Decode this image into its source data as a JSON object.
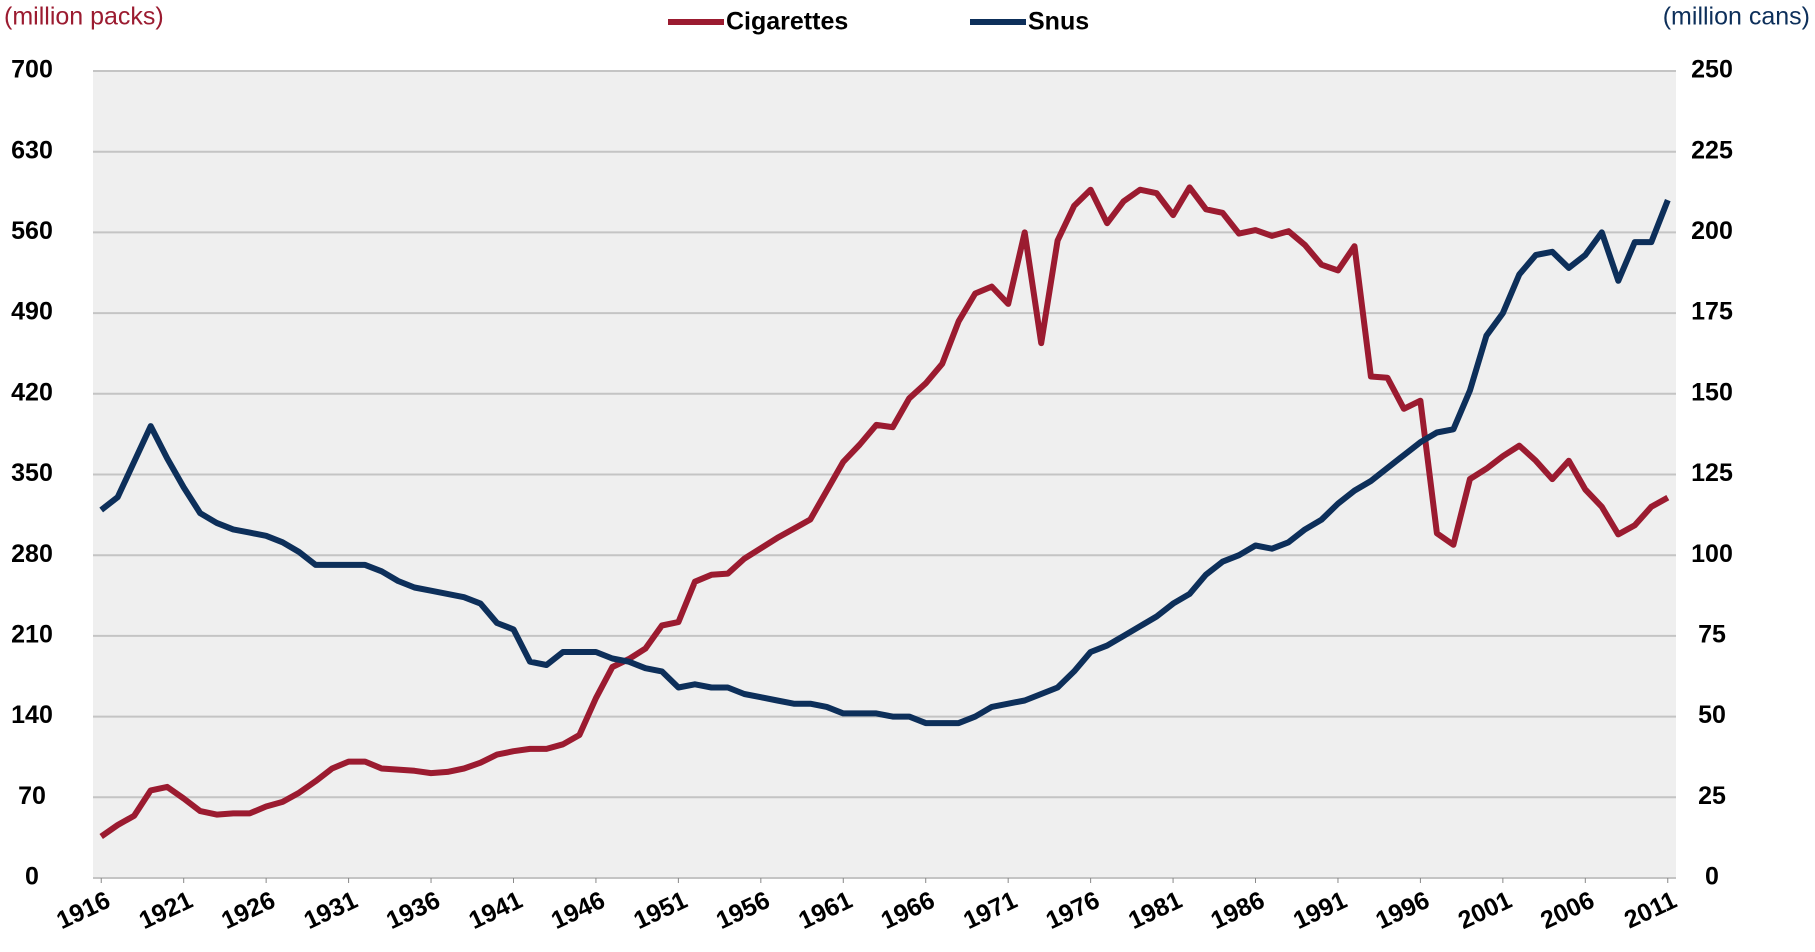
{
  "chart_data": {
    "type": "line",
    "ylabel": "(million packs)",
    "y2label": "(million cans)",
    "x": [
      1916,
      1917,
      1918,
      1919,
      1920,
      1921,
      1922,
      1923,
      1924,
      1925,
      1926,
      1927,
      1928,
      1929,
      1930,
      1931,
      1932,
      1933,
      1934,
      1935,
      1936,
      1937,
      1938,
      1939,
      1940,
      1941,
      1942,
      1943,
      1944,
      1945,
      1946,
      1947,
      1948,
      1949,
      1950,
      1951,
      1952,
      1953,
      1954,
      1955,
      1956,
      1957,
      1958,
      1959,
      1960,
      1961,
      1962,
      1963,
      1964,
      1965,
      1966,
      1967,
      1968,
      1969,
      1970,
      1971,
      1972,
      1973,
      1974,
      1975,
      1976,
      1977,
      1978,
      1979,
      1980,
      1981,
      1982,
      1983,
      1984,
      1985,
      1986,
      1987,
      1988,
      1989,
      1990,
      1991,
      1992,
      1993,
      1994,
      1995,
      1996,
      1997,
      1998,
      1999,
      2000,
      2001,
      2002,
      2003,
      2004,
      2005,
      2006,
      2007,
      2008,
      2009,
      2010,
      2011
    ],
    "xlim": [
      1915.5,
      2011.5
    ],
    "xticks": [
      1916,
      1921,
      1926,
      1931,
      1936,
      1941,
      1946,
      1951,
      1956,
      1961,
      1966,
      1971,
      1976,
      1981,
      1986,
      1991,
      1996,
      2001,
      2006,
      2011
    ],
    "ylim": [
      0,
      700
    ],
    "yticks": [
      0,
      70,
      140,
      210,
      280,
      350,
      420,
      490,
      560,
      630,
      700
    ],
    "y2lim": [
      0,
      250
    ],
    "y2ticks": [
      0,
      25,
      50,
      75,
      100,
      125,
      150,
      175,
      200,
      225,
      250
    ],
    "grid": true,
    "legend": "top",
    "series": [
      {
        "name": "Cigarettes",
        "color": "#9b1b30",
        "values": [
          36,
          46,
          54,
          76,
          79,
          69,
          58,
          55,
          56,
          56,
          62,
          66,
          74,
          84,
          95,
          101,
          101,
          95,
          94,
          93,
          91,
          92,
          95,
          100,
          107,
          110,
          112,
          112,
          116,
          124,
          156,
          183,
          190,
          199,
          219,
          222,
          257,
          263,
          264,
          277,
          286,
          295,
          303,
          311,
          336,
          361,
          376,
          393,
          391,
          416,
          429,
          446,
          483,
          507,
          513,
          498,
          560,
          464,
          553,
          583,
          597,
          568,
          587,
          597,
          594,
          575,
          599,
          580,
          577,
          559,
          562,
          557,
          561,
          549,
          532,
          527,
          548,
          435,
          434,
          407,
          414,
          299,
          289,
          346,
          355,
          366,
          375,
          362,
          346,
          362,
          337,
          322,
          298,
          306,
          322,
          330
        ]
      },
      {
        "name": "Snus",
        "color": "#0d2f5a",
        "axis": "y2",
        "values": [
          114,
          118,
          129,
          140,
          130,
          121,
          113,
          110,
          108,
          107,
          106,
          104,
          101,
          97,
          97,
          97,
          97,
          95,
          92,
          90,
          89,
          88,
          87,
          85,
          79,
          77,
          67,
          66,
          70,
          70,
          70,
          68,
          67,
          65,
          64,
          59,
          60,
          59,
          59,
          57,
          56,
          55,
          54,
          54,
          53,
          51,
          51,
          51,
          50,
          50,
          48,
          48,
          48,
          50,
          53,
          54,
          55,
          57,
          59,
          64,
          70,
          72,
          75,
          78,
          81,
          85,
          88,
          94,
          98,
          100,
          103,
          102,
          104,
          108,
          111,
          116,
          120,
          123,
          127,
          131,
          135,
          138,
          139,
          151,
          168,
          175,
          187,
          193,
          194,
          189,
          193,
          200,
          185,
          197,
          197,
          210
        ]
      }
    ]
  }
}
